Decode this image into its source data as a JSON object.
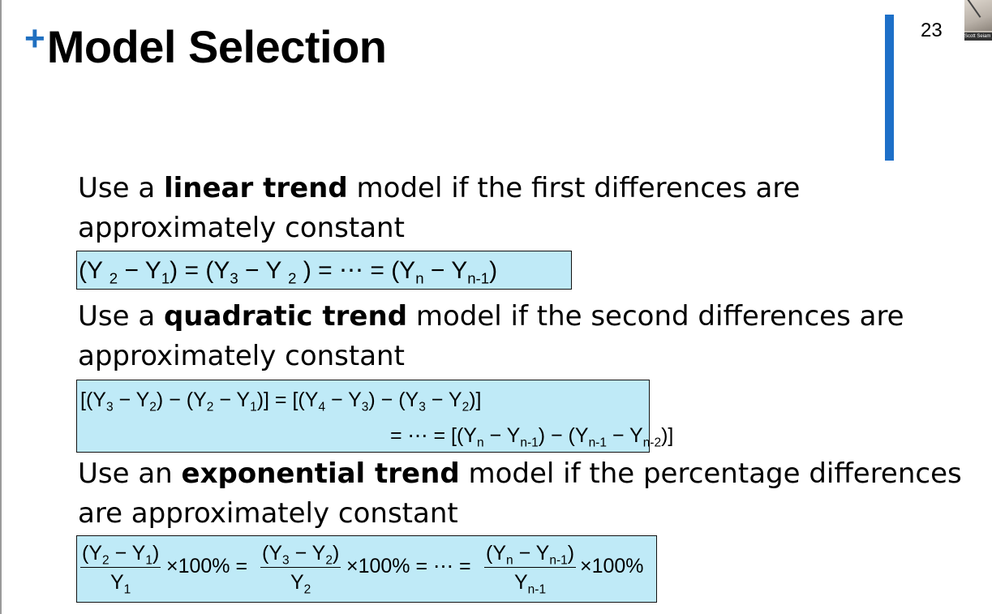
{
  "header": {
    "plus": "+",
    "title": "Model Selection",
    "page_number": "23",
    "thumbnail_name": "Scott Seiam"
  },
  "sections": [
    {
      "pre": "Use a ",
      "bold": "linear trend",
      "post": " model if the first differences are",
      "line2": "approximately constant"
    },
    {
      "pre": "Use a ",
      "bold": "quadratic trend",
      "post": " model if the second differences are",
      "line2": "approximately constant"
    },
    {
      "pre": "Use an ",
      "bold": "exponential trend",
      "post": " model if the percentage differences",
      "line2": "are approximately constant"
    }
  ],
  "colors": {
    "accent": "#1f6fc0",
    "side_bar": "#1d6fc8",
    "formula_bg": "#bfeaf7"
  }
}
